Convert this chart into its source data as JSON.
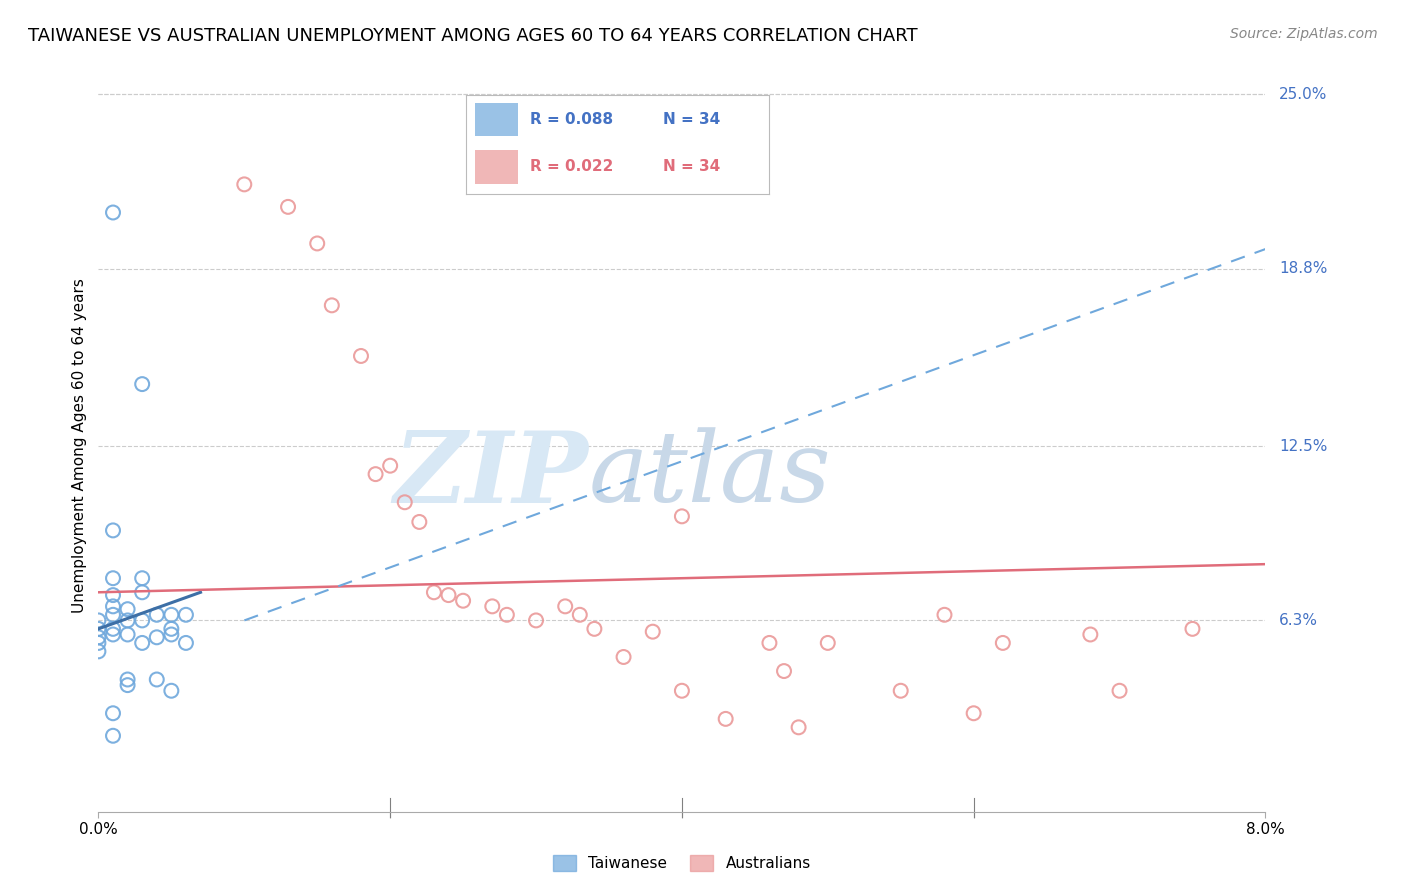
{
  "title": "TAIWANESE VS AUSTRALIAN UNEMPLOYMENT AMONG AGES 60 TO 64 YEARS CORRELATION CHART",
  "source": "Source: ZipAtlas.com",
  "ylabel": "Unemployment Among Ages 60 to 64 years",
  "xlim": [
    0.0,
    0.08
  ],
  "ylim": [
    -0.005,
    0.255
  ],
  "ytick_right_labels": [
    "25.0%",
    "18.8%",
    "12.5%",
    "6.3%"
  ],
  "ytick_right_values": [
    0.25,
    0.188,
    0.125,
    0.063
  ],
  "legend_r_blue": "0.088",
  "legend_n_blue": "34",
  "legend_r_pink": "0.022",
  "legend_n_pink": "34",
  "blue_scatter_x": [
    0.0,
    0.0,
    0.0,
    0.0,
    0.0,
    0.001,
    0.001,
    0.001,
    0.001,
    0.001,
    0.001,
    0.001,
    0.001,
    0.002,
    0.002,
    0.002,
    0.002,
    0.003,
    0.003,
    0.003,
    0.003,
    0.004,
    0.004,
    0.004,
    0.005,
    0.005,
    0.005,
    0.006,
    0.001,
    0.001,
    0.002,
    0.003,
    0.005,
    0.006
  ],
  "blue_scatter_y": [
    0.063,
    0.06,
    0.057,
    0.055,
    0.052,
    0.208,
    0.095,
    0.078,
    0.072,
    0.068,
    0.065,
    0.06,
    0.058,
    0.067,
    0.063,
    0.058,
    0.042,
    0.078,
    0.073,
    0.063,
    0.055,
    0.057,
    0.065,
    0.042,
    0.06,
    0.065,
    0.038,
    0.065,
    0.03,
    0.022,
    0.04,
    0.147,
    0.058,
    0.055
  ],
  "pink_scatter_x": [
    0.01,
    0.013,
    0.015,
    0.016,
    0.018,
    0.019,
    0.02,
    0.021,
    0.022,
    0.023,
    0.024,
    0.025,
    0.027,
    0.028,
    0.03,
    0.032,
    0.033,
    0.034,
    0.036,
    0.038,
    0.04,
    0.043,
    0.046,
    0.047,
    0.048,
    0.05,
    0.055,
    0.058,
    0.06,
    0.062,
    0.068,
    0.07,
    0.075,
    0.04
  ],
  "pink_scatter_y": [
    0.218,
    0.21,
    0.197,
    0.175,
    0.157,
    0.115,
    0.118,
    0.105,
    0.098,
    0.073,
    0.072,
    0.07,
    0.068,
    0.065,
    0.063,
    0.068,
    0.065,
    0.06,
    0.05,
    0.059,
    0.038,
    0.028,
    0.055,
    0.045,
    0.025,
    0.055,
    0.038,
    0.065,
    0.03,
    0.055,
    0.058,
    0.038,
    0.06,
    0.1
  ],
  "blue_solid_line_x": [
    0.0,
    0.007
  ],
  "blue_solid_line_y": [
    0.06,
    0.073
  ],
  "blue_dash_line_x": [
    0.01,
    0.08
  ],
  "blue_dash_line_y": [
    0.063,
    0.195
  ],
  "pink_line_x": [
    0.0,
    0.08
  ],
  "pink_line_y": [
    0.073,
    0.083
  ],
  "blue_color": "#6fa8dc",
  "pink_color": "#ea9999",
  "blue_solid_color": "#3d6fa6",
  "pink_line_color": "#e06c7a",
  "blue_dash_color": "#6fa8dc",
  "right_label_color": "#4472c4",
  "pink_label_color": "#e06c7a",
  "title_fontsize": 13,
  "axis_label_fontsize": 11,
  "tick_fontsize": 11,
  "scatter_size": 100,
  "background_color": "#ffffff",
  "grid_color": "#cccccc",
  "watermark_color": "#d8e8f5"
}
